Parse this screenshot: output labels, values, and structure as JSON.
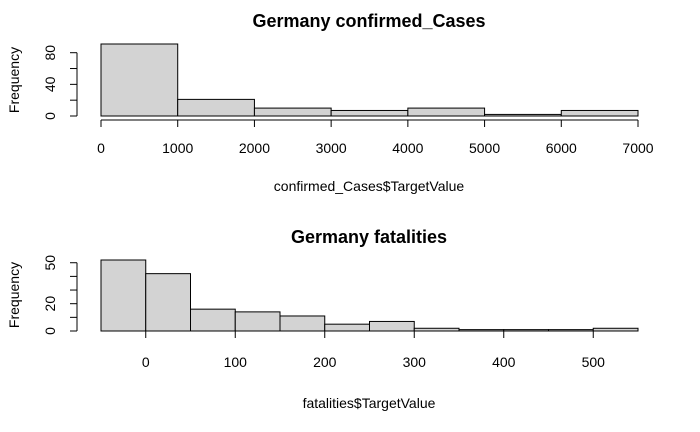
{
  "colors": {
    "bar_fill": "#d3d3d3",
    "bar_stroke": "#000000",
    "background": "#ffffff"
  },
  "chart_data": [
    {
      "type": "bar",
      "title": "Germany confirmed_Cases",
      "xlabel": "confirmed_Cases$TargetValue",
      "ylabel": "Frequency",
      "breaks": [
        0,
        1000,
        2000,
        3000,
        4000,
        5000,
        6000,
        7000
      ],
      "counts": [
        91,
        21,
        10,
        7,
        10,
        2,
        7
      ],
      "xlim": [
        0,
        7000
      ],
      "ylim": [
        0,
        91
      ],
      "xticks": [
        0,
        1000,
        2000,
        3000,
        4000,
        5000,
        6000,
        7000
      ],
      "xtick_labels": [
        "0",
        "1000",
        "2000",
        "3000",
        "4000",
        "5000",
        "6000",
        "7000"
      ],
      "yticks": [
        0,
        20,
        40,
        60,
        80
      ],
      "ytick_labels": [
        "0",
        "40",
        "80"
      ],
      "ytick_label_values": [
        0,
        40,
        80
      ],
      "grid": false
    },
    {
      "type": "bar",
      "title": "Germany fatalities",
      "xlabel": "fatalities$TargetValue",
      "ylabel": "Frequency",
      "breaks": [
        -50,
        0,
        50,
        100,
        150,
        200,
        250,
        300,
        350,
        400,
        450,
        500,
        550
      ],
      "counts": [
        52,
        42,
        16,
        14,
        11,
        5,
        7,
        2,
        1,
        1,
        1,
        2
      ],
      "xlim": [
        -50,
        550
      ],
      "ylim": [
        0,
        52
      ],
      "xticks": [
        0,
        100,
        200,
        300,
        400,
        500
      ],
      "xtick_labels": [
        "0",
        "100",
        "200",
        "300",
        "400",
        "500"
      ],
      "yticks": [
        0,
        10,
        20,
        30,
        40,
        50
      ],
      "ytick_labels": [
        "0",
        "20",
        "50"
      ],
      "ytick_label_values": [
        0,
        20,
        50
      ],
      "grid": false
    }
  ]
}
